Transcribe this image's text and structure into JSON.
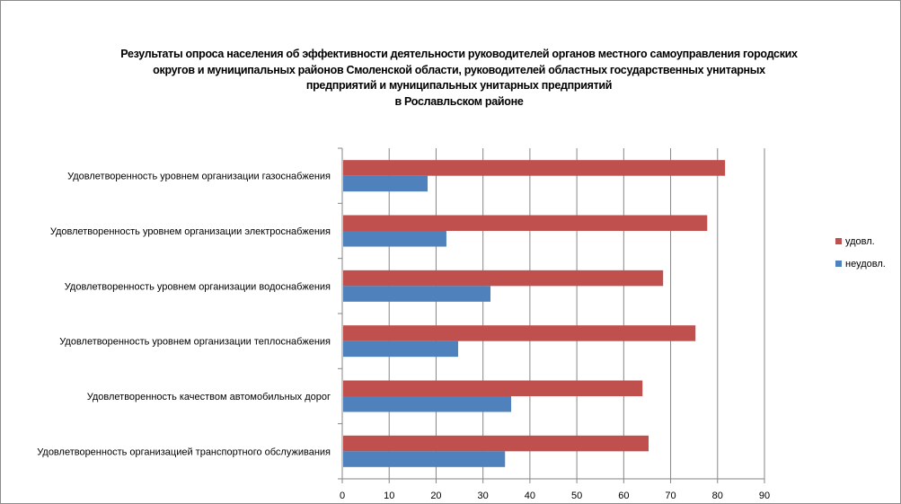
{
  "chart_data": {
    "type": "bar",
    "orientation": "horizontal",
    "title_lines": [
      "Результаты опроса населения об эффективности деятельности руководителей органов местного самоуправления городских",
      "округов и муниципальных районов Смоленской области, руководителей областных государственных унитарных",
      "предприятий и муниципальных унитарных предприятий",
      "в Рославльском районе"
    ],
    "categories": [
      "Удовлетворенность  уровнем  организации газоснабжения",
      "Удовлетворенность  уровнем организации электроснабжения",
      "Удовлетворенность  уровнем  организации водоснабжения",
      "Удовлетворенность  уровнем  организации теплоснабжения",
      "Удовлетворенность  качеством  автомобильных дорог",
      "Удовлетворенность  организацией транспортного обслуживания"
    ],
    "series": [
      {
        "name": "удовл.",
        "color": "#c0504d",
        "values": [
          81.6,
          77.8,
          68.4,
          75.3,
          64.0,
          65.3
        ]
      },
      {
        "name": "неудовл.",
        "color": "#4f81bd",
        "values": [
          18.2,
          22.2,
          31.6,
          24.7,
          36.0,
          34.7
        ]
      }
    ],
    "xlim": [
      0,
      90
    ],
    "xticks": [
      "0",
      "10",
      "20",
      "30",
      "40",
      "50",
      "60",
      "70",
      "80",
      "90"
    ],
    "grid": true,
    "legend_position": "right"
  }
}
